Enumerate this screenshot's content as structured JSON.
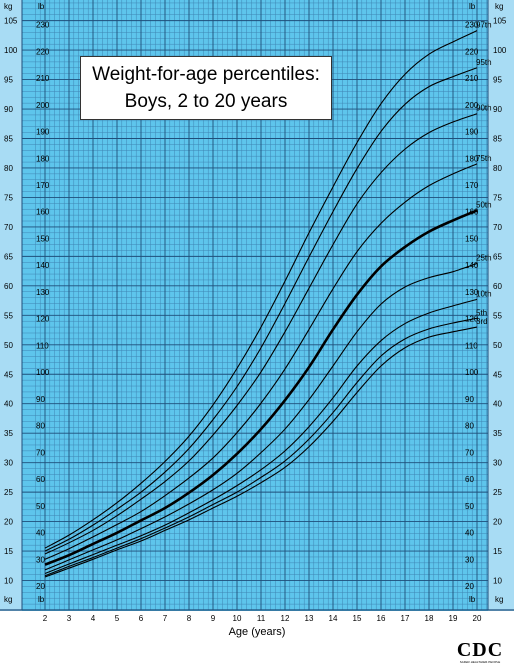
{
  "chart_data": {
    "type": "line",
    "title": "Weight-for-age percentiles:",
    "subtitle": "Boys, 2 to 20 years",
    "xlabel": "Age (years)",
    "xlim": [
      1.5,
      20.5
    ],
    "ylim_kg": [
      5,
      108.5
    ],
    "ylim_lb": [
      10,
      240
    ],
    "x_ticks": [
      2,
      3,
      4,
      5,
      6,
      7,
      8,
      9,
      10,
      11,
      12,
      13,
      14,
      15,
      16,
      17,
      18,
      19,
      20
    ],
    "y_ticks_kg": [
      10,
      15,
      20,
      25,
      30,
      35,
      40,
      45,
      50,
      55,
      60,
      65,
      70,
      75,
      80,
      85,
      90,
      95,
      100,
      105
    ],
    "y_ticks_lb": [
      20,
      30,
      40,
      50,
      60,
      70,
      80,
      90,
      100,
      110,
      120,
      130,
      140,
      150,
      160,
      170,
      180,
      190,
      200,
      210,
      220,
      230
    ],
    "unit_kg": "kg",
    "unit_lb": "lb",
    "grid": true,
    "colors": {
      "background": "#5ec5ec",
      "grid_major": "#1f4e7a",
      "grid_minor": "#3f86b4",
      "line": "#000000"
    },
    "x": [
      2,
      3,
      4,
      5,
      6,
      7,
      8,
      9,
      10,
      11,
      12,
      13,
      14,
      15,
      16,
      17,
      18,
      19,
      20
    ],
    "series": [
      {
        "name": "97th",
        "values": [
          15.5,
          17.7,
          20.3,
          23.2,
          26.5,
          30.2,
          34.5,
          39.8,
          46.0,
          53.0,
          60.8,
          69.0,
          76.8,
          84.3,
          90.9,
          95.9,
          99.3,
          101.4,
          103.3
        ]
      },
      {
        "name": "95th",
        "values": [
          15.0,
          17.0,
          19.4,
          22.1,
          25.0,
          28.4,
          32.4,
          37.3,
          42.9,
          49.5,
          57.0,
          64.9,
          72.6,
          79.9,
          86.2,
          90.8,
          93.8,
          95.5,
          97.0
        ]
      },
      {
        "name": "90th",
        "values": [
          14.5,
          16.4,
          18.5,
          21.0,
          23.8,
          26.8,
          30.3,
          34.7,
          39.7,
          45.4,
          52.2,
          59.6,
          67.0,
          73.9,
          79.2,
          83.2,
          86.0,
          87.8,
          89.2
        ]
      },
      {
        "name": "75th",
        "values": [
          13.6,
          15.4,
          17.4,
          19.5,
          21.7,
          24.4,
          27.4,
          30.8,
          35.1,
          40.1,
          45.9,
          52.6,
          59.5,
          65.8,
          70.6,
          74.2,
          77.0,
          79.0,
          80.7
        ]
      },
      {
        "name": "50th",
        "values": [
          12.7,
          14.3,
          16.2,
          18.1,
          20.2,
          22.3,
          24.9,
          27.9,
          31.5,
          35.7,
          40.6,
          46.2,
          52.6,
          58.5,
          63.3,
          66.6,
          69.2,
          71.1,
          72.8
        ]
      },
      {
        "name": "25th",
        "values": [
          11.8,
          13.5,
          15.2,
          16.9,
          18.8,
          20.8,
          23.0,
          25.4,
          28.2,
          31.7,
          35.7,
          40.7,
          46.4,
          52.2,
          56.9,
          59.8,
          61.4,
          62.4,
          63.8
        ]
      },
      {
        "name": "10th",
        "values": [
          11.2,
          12.8,
          14.4,
          16.0,
          17.6,
          19.4,
          21.5,
          23.7,
          26.1,
          28.8,
          32.0,
          36.1,
          41.0,
          46.4,
          50.7,
          53.6,
          55.4,
          56.6,
          57.7
        ]
      },
      {
        "name": "5th",
        "values": [
          10.8,
          12.4,
          13.9,
          15.5,
          17.1,
          18.9,
          20.8,
          22.9,
          25.0,
          27.5,
          30.3,
          34.0,
          38.5,
          43.6,
          48.1,
          51.0,
          52.7,
          53.7,
          54.5
        ]
      },
      {
        "name": "3rd",
        "values": [
          10.6,
          12.1,
          13.6,
          15.2,
          16.7,
          18.5,
          20.3,
          22.3,
          24.3,
          26.6,
          29.2,
          32.7,
          37.0,
          41.9,
          46.4,
          49.5,
          51.3,
          52.2,
          53.0
        ]
      }
    ]
  },
  "logo_text": "CDC",
  "logo_subtext": "SAFER·HEALTHIER·PEOPLE"
}
